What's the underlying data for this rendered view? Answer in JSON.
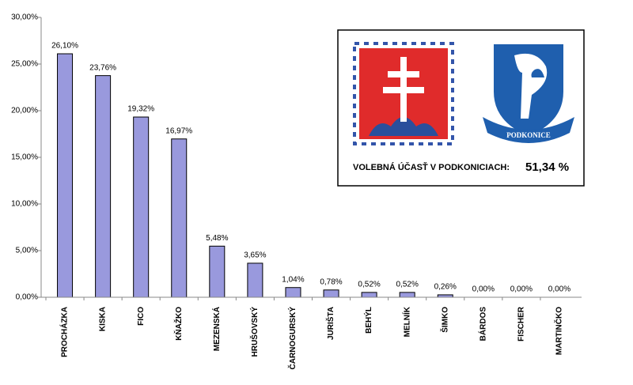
{
  "chart_data": {
    "type": "bar",
    "categories": [
      "PROCHÁZKA",
      "KISKA",
      "FICO",
      "KŇAŽKO",
      "MEZENSKÁ",
      "HRUŠOVSKÝ",
      "ČARNOGURSKÝ",
      "JURIŠTA",
      "BEHÝL",
      "MELNÍK",
      "ŠIMKO",
      "BÁRDOS",
      "FISCHER",
      "MARTINČKO"
    ],
    "values": [
      26.1,
      23.76,
      19.32,
      16.97,
      5.48,
      3.65,
      1.04,
      0.78,
      0.52,
      0.52,
      0.26,
      0,
      0,
      0
    ],
    "value_labels": [
      "26,10%",
      "23,76%",
      "19,32%",
      "16,97%",
      "5,48%",
      "3,65%",
      "1,04%",
      "0,78%",
      "0,52%",
      "0,52%",
      "0,26%",
      "0,00%",
      "0,00%",
      "0,00%"
    ],
    "color": "#9999dd",
    "ylim": [
      0,
      30
    ],
    "yticks": [
      {
        "value": 0,
        "label": "0,00%"
      },
      {
        "value": 5,
        "label": "5,00%"
      },
      {
        "value": 10,
        "label": "10,00%"
      },
      {
        "value": 15,
        "label": "15,00%"
      },
      {
        "value": 20,
        "label": "20,00%"
      },
      {
        "value": 25,
        "label": "25,00%"
      },
      {
        "value": 30,
        "label": "30,00%"
      }
    ],
    "grid": false,
    "annotations": [
      {
        "text": "VOLEBNÁ ÚČASŤ V PODKONICIACH:"
      },
      {
        "text": "51,34 %"
      },
      {
        "text": "PODKONICE"
      }
    ]
  }
}
